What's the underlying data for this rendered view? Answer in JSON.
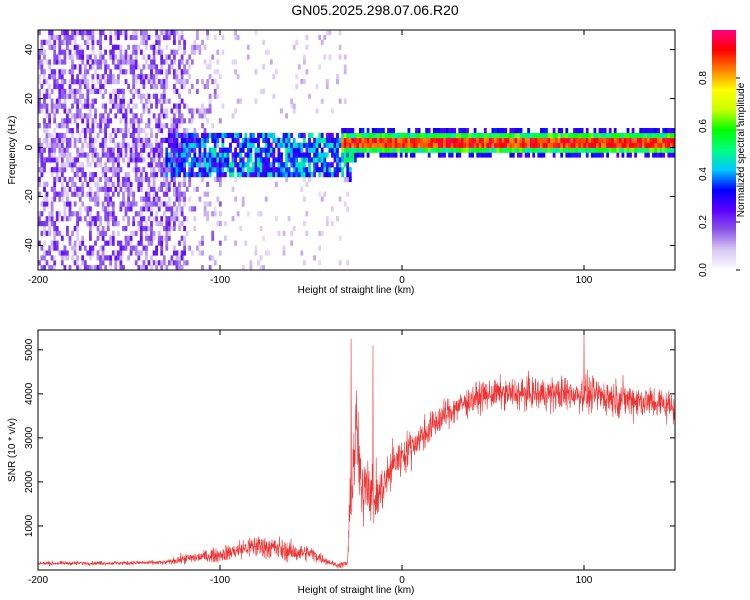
{
  "title": "GN05.2025.298.07.06.R20",
  "colors": {
    "spectrogram_ramp": [
      "#ffffff",
      "#d9c8f5",
      "#8c54e8",
      "#5a00ff",
      "#0000ff",
      "#00c8ff",
      "#00ff80",
      "#00ff00",
      "#c8ff00",
      "#ffff00",
      "#ff8000",
      "#ff0000",
      "#ff0080"
    ],
    "snr_line": "#ee3333",
    "axes": "#000000"
  },
  "chart_data": [
    {
      "type": "heatmap",
      "title": "GN05.2025.298.07.06.R20",
      "xlabel": "Height of straight line (km)",
      "ylabel": "Frequency (Hz)",
      "xlim": [
        -200,
        150
      ],
      "ylim": [
        -50,
        48
      ],
      "xticks": [
        -200,
        -100,
        0,
        100
      ],
      "yticks": [
        -40,
        -20,
        0,
        20,
        40
      ],
      "colorbar": {
        "label": "Normalized spectral amplitude",
        "range": [
          0.0,
          1.0
        ],
        "ticks": [
          0.0,
          0.2,
          0.4,
          0.6,
          0.8
        ]
      },
      "regions": [
        {
          "x_range": [
            -200,
            -120
          ],
          "freq_range": [
            -50,
            48
          ],
          "amplitude": "0.15-0.3",
          "description": "broadband noise"
        },
        {
          "x_range": [
            -130,
            -30
          ],
          "freq_range": [
            -12,
            8
          ],
          "amplitude": "0.2-0.5",
          "description": "emerging signal"
        },
        {
          "x_range": [
            -30,
            150
          ],
          "freq_range": [
            -2,
            2
          ],
          "amplitude": "0.8-1.0",
          "description": "strong narrow carrier near 0 Hz"
        }
      ]
    },
    {
      "type": "line",
      "xlabel": "Height of straight line (km)",
      "ylabel": "SNR (10 * v/v)",
      "xlim": [
        -200,
        150
      ],
      "ylim": [
        0,
        5450
      ],
      "xticks": [
        -200,
        -100,
        0,
        100
      ],
      "yticks": [
        1000,
        2000,
        3000,
        4000,
        5000
      ],
      "series": [
        {
          "name": "SNR",
          "x": [
            -200,
            -150,
            -130,
            -120,
            -100,
            -80,
            -70,
            -60,
            -50,
            -40,
            -35,
            -30,
            -28,
            -25,
            -22,
            -20,
            -15,
            -10,
            -5,
            0,
            10,
            20,
            30,
            40,
            50,
            60,
            80,
            100,
            120,
            140,
            150
          ],
          "y": [
            150,
            160,
            170,
            250,
            350,
            550,
            500,
            400,
            380,
            180,
            100,
            150,
            1800,
            3300,
            1500,
            2200,
            1600,
            1900,
            2400,
            2600,
            3000,
            3400,
            3700,
            3900,
            4000,
            4000,
            4000,
            4000,
            3900,
            3800,
            3700
          ],
          "noise_spread": [
            80,
            80,
            90,
            200,
            300,
            500,
            500,
            400,
            300,
            150,
            100,
            200,
            1500,
            1800,
            1500,
            1400,
            1200,
            1000,
            900,
            800,
            700,
            650,
            600,
            600,
            600,
            650,
            700,
            750,
            750,
            700,
            650
          ],
          "notable_peaks": [
            {
              "x": -28,
              "y": 5250
            },
            {
              "x": -16,
              "y": 5100
            },
            {
              "x": 100,
              "y": 5400
            }
          ]
        }
      ]
    }
  ]
}
